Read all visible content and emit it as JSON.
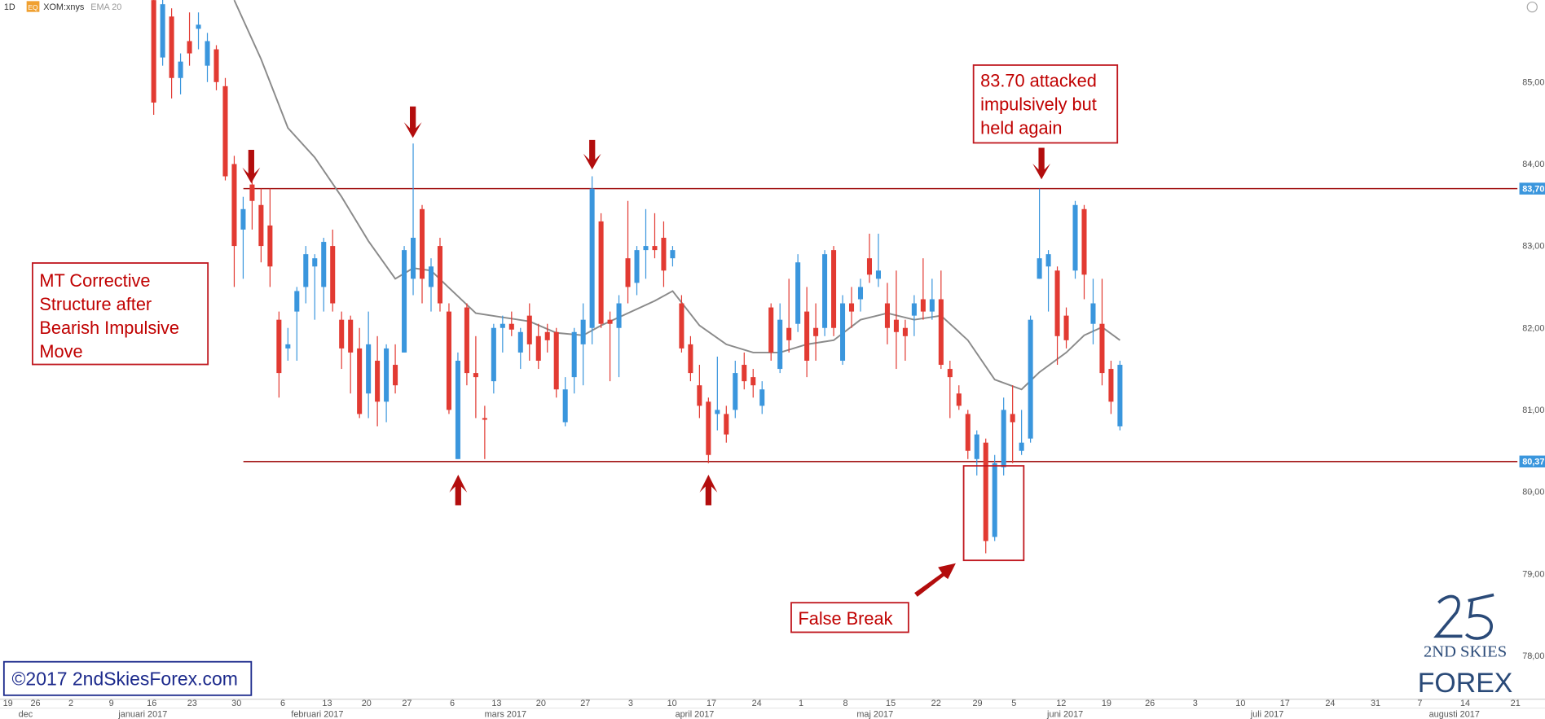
{
  "header": {
    "timeframe": "1D",
    "badge": "EQ",
    "symbol": "XOM:xnys",
    "indicator": "EMA 20"
  },
  "chart_data": {
    "type": "candlestick",
    "up_color": "#3a96dd",
    "down_color": "#e23a32",
    "ema_color": "#8a8a8a",
    "level_color": "#a31515",
    "ylim": [
      77.47,
      86.0
    ],
    "yticks": [
      {
        "value": 85,
        "label": "85,00"
      },
      {
        "value": 84,
        "label": "84,00"
      },
      {
        "value": 83,
        "label": "83,00"
      },
      {
        "value": 82,
        "label": "82,00"
      },
      {
        "value": 81,
        "label": "81,00"
      },
      {
        "value": 80,
        "label": "80,00"
      },
      {
        "value": 79,
        "label": "79,00"
      },
      {
        "value": 78,
        "label": "78,00"
      }
    ],
    "levels": [
      {
        "value": 83.7,
        "label": "83,70"
      },
      {
        "value": 80.37,
        "label": "80,37"
      }
    ],
    "week_labels": [
      "19",
      "26",
      "2",
      "9",
      "16",
      "23",
      "30",
      "6",
      "13",
      "20",
      "27",
      "6",
      "13",
      "20",
      "27",
      "3",
      "10",
      "17",
      "24",
      "1",
      "8",
      "15",
      "22",
      "29",
      "5",
      "12",
      "19",
      "26",
      "3",
      "10",
      "17",
      "24",
      "31",
      "7",
      "14",
      "21"
    ],
    "month_labels": [
      "dec",
      "januari 2017",
      "februari 2017",
      "mars 2017",
      "april 2017",
      "maj 2017",
      "juni 2017",
      "juli 2017",
      "augusti 2017"
    ],
    "open": [
      86.0,
      85.3,
      85.8,
      85.05,
      85.5,
      85.65,
      85.2,
      85.4,
      84.95,
      84.0,
      83.2,
      83.75,
      83.5,
      83.25,
      82.1,
      81.75,
      82.2,
      82.5,
      82.75,
      82.5,
      83.0,
      82.1,
      82.1,
      81.75,
      81.2,
      81.6,
      81.1,
      81.55,
      81.7,
      82.6,
      83.45,
      82.5,
      83.0,
      82.2,
      80.4,
      82.25,
      81.45,
      80.9,
      81.35,
      82.0,
      82.05,
      81.7,
      82.15,
      81.9,
      81.95,
      81.95,
      80.85,
      81.4,
      81.8,
      82.0,
      83.3,
      82.1,
      82.0,
      82.85,
      82.55,
      82.95,
      83.0,
      83.1,
      82.85,
      82.3,
      81.8,
      81.3,
      81.1,
      80.95,
      80.95,
      81.0,
      81.55,
      81.4,
      81.05,
      82.25,
      81.5,
      82.0,
      82.05,
      82.2,
      82.0,
      82.0,
      82.95,
      81.6,
      82.3,
      82.35,
      82.85,
      82.6,
      82.3,
      82.1,
      82.0,
      82.15,
      82.35,
      82.2,
      82.35,
      81.5,
      81.2,
      80.95,
      80.4,
      80.6,
      79.45,
      80.3,
      80.95,
      80.5,
      80.65,
      82.6,
      82.75,
      82.7,
      82.15,
      82.7,
      83.45,
      82.05,
      82.05,
      81.5,
      80.8
    ],
    "high": [
      86.1,
      86.1,
      85.9,
      85.35,
      85.85,
      85.85,
      85.6,
      85.45,
      85.05,
      84.1,
      83.6,
      83.82,
      83.7,
      83.7,
      82.2,
      82.0,
      82.5,
      83.0,
      82.9,
      83.1,
      83.2,
      82.2,
      82.15,
      82.0,
      82.2,
      81.9,
      81.8,
      81.8,
      83.0,
      84.25,
      83.5,
      82.85,
      83.1,
      82.3,
      81.7,
      82.3,
      81.9,
      81.05,
      82.05,
      82.15,
      82.2,
      82.0,
      82.3,
      82.05,
      82.05,
      82.0,
      81.4,
      82.0,
      82.3,
      83.85,
      83.4,
      82.2,
      82.4,
      83.55,
      83.0,
      83.45,
      83.4,
      83.3,
      83.0,
      82.4,
      81.9,
      81.55,
      81.15,
      81.65,
      81.05,
      81.6,
      81.7,
      81.5,
      81.35,
      82.3,
      82.3,
      82.6,
      82.9,
      82.5,
      82.3,
      82.95,
      83.0,
      82.4,
      82.5,
      82.6,
      83.15,
      83.15,
      82.55,
      82.7,
      82.1,
      82.4,
      82.85,
      82.6,
      82.7,
      81.6,
      81.3,
      81.0,
      80.75,
      80.65,
      80.45,
      81.15,
      81.3,
      81.0,
      82.15,
      83.7,
      82.95,
      82.75,
      82.25,
      83.55,
      83.5,
      82.6,
      82.6,
      81.6,
      81.6
    ],
    "low": [
      84.6,
      85.2,
      84.8,
      84.85,
      85.2,
      85.4,
      85.0,
      84.9,
      83.8,
      82.5,
      82.6,
      83.2,
      82.8,
      82.5,
      81.15,
      81.6,
      81.6,
      82.3,
      82.1,
      82.2,
      82.2,
      81.5,
      81.2,
      80.9,
      80.9,
      80.8,
      80.85,
      81.2,
      81.7,
      82.4,
      82.3,
      82.2,
      82.2,
      80.95,
      80.4,
      81.3,
      80.9,
      80.4,
      81.2,
      81.7,
      81.9,
      81.5,
      81.6,
      81.5,
      81.7,
      81.15,
      80.8,
      81.2,
      81.3,
      81.8,
      82.0,
      81.35,
      81.4,
      82.3,
      82.4,
      82.6,
      82.85,
      82.5,
      82.75,
      81.7,
      81.35,
      80.9,
      80.35,
      80.75,
      80.6,
      80.9,
      81.25,
      81.15,
      80.95,
      81.6,
      81.45,
      81.7,
      81.95,
      81.4,
      81.6,
      81.9,
      81.9,
      81.55,
      82.0,
      82.2,
      82.55,
      82.5,
      81.8,
      81.5,
      81.6,
      81.9,
      82.1,
      82.1,
      81.5,
      80.9,
      81.0,
      80.4,
      80.2,
      79.25,
      79.4,
      80.2,
      80.35,
      80.45,
      80.6,
      82.6,
      82.2,
      81.55,
      81.75,
      82.6,
      82.35,
      81.8,
      81.3,
      80.95,
      80.75
    ],
    "close": [
      84.75,
      85.95,
      85.05,
      85.25,
      85.35,
      85.7,
      85.5,
      85.0,
      83.85,
      83.0,
      83.45,
      83.55,
      83.0,
      82.75,
      81.45,
      81.8,
      82.45,
      82.9,
      82.85,
      83.05,
      82.3,
      81.75,
      81.7,
      80.95,
      81.8,
      81.1,
      81.75,
      81.3,
      82.95,
      83.1,
      82.6,
      82.75,
      82.3,
      81.0,
      81.6,
      81.45,
      81.4,
      80.88,
      82.0,
      82.05,
      81.98,
      81.95,
      81.8,
      81.6,
      81.85,
      81.25,
      81.25,
      81.95,
      82.1,
      83.7,
      82.05,
      82.05,
      82.3,
      82.5,
      82.95,
      83.0,
      82.95,
      82.7,
      82.95,
      81.75,
      81.45,
      81.05,
      80.45,
      81.0,
      80.7,
      81.45,
      81.35,
      81.3,
      81.25,
      81.7,
      82.1,
      81.85,
      82.8,
      81.6,
      81.9,
      82.9,
      82.0,
      82.3,
      82.2,
      82.5,
      82.65,
      82.7,
      82.0,
      81.95,
      81.9,
      82.3,
      82.2,
      82.35,
      81.55,
      81.4,
      81.05,
      80.5,
      80.7,
      79.4,
      80.35,
      81.0,
      80.85,
      80.6,
      82.1,
      82.85,
      82.9,
      81.9,
      81.85,
      83.5,
      82.65,
      82.3,
      81.45,
      81.1,
      81.55
    ],
    "ema": {
      "x": [
        9,
        12,
        15,
        18,
        21,
        24,
        27,
        29,
        31,
        33,
        36,
        39,
        42,
        45,
        48,
        50,
        53,
        56,
        58,
        61,
        64,
        67,
        70,
        73,
        76,
        79,
        82,
        85,
        88,
        91,
        94,
        97,
        99,
        102,
        104,
        106,
        108
      ],
      "values": [
        86.0,
        85.28,
        84.44,
        84.08,
        83.6,
        83.06,
        82.6,
        82.73,
        82.7,
        82.49,
        82.18,
        82.13,
        82.08,
        81.94,
        81.91,
        82.03,
        82.18,
        82.33,
        82.45,
        82.03,
        81.8,
        81.7,
        81.7,
        81.8,
        81.85,
        82.1,
        82.18,
        82.1,
        82.15,
        81.85,
        81.37,
        81.25,
        81.46,
        81.7,
        81.91,
        82.01,
        81.85
      ]
    }
  },
  "annotations": {
    "attack": [
      "83.70 attacked",
      "impulsively but",
      "held again"
    ],
    "structure": [
      "MT Corrective",
      "Structure after",
      "Bearish Impulsive",
      "Move"
    ],
    "false_break": "False Break",
    "copyright": "©2017 2ndSkiesForex.com",
    "logo_top": "2ND SKIES",
    "logo_bottom": "FOREX"
  }
}
